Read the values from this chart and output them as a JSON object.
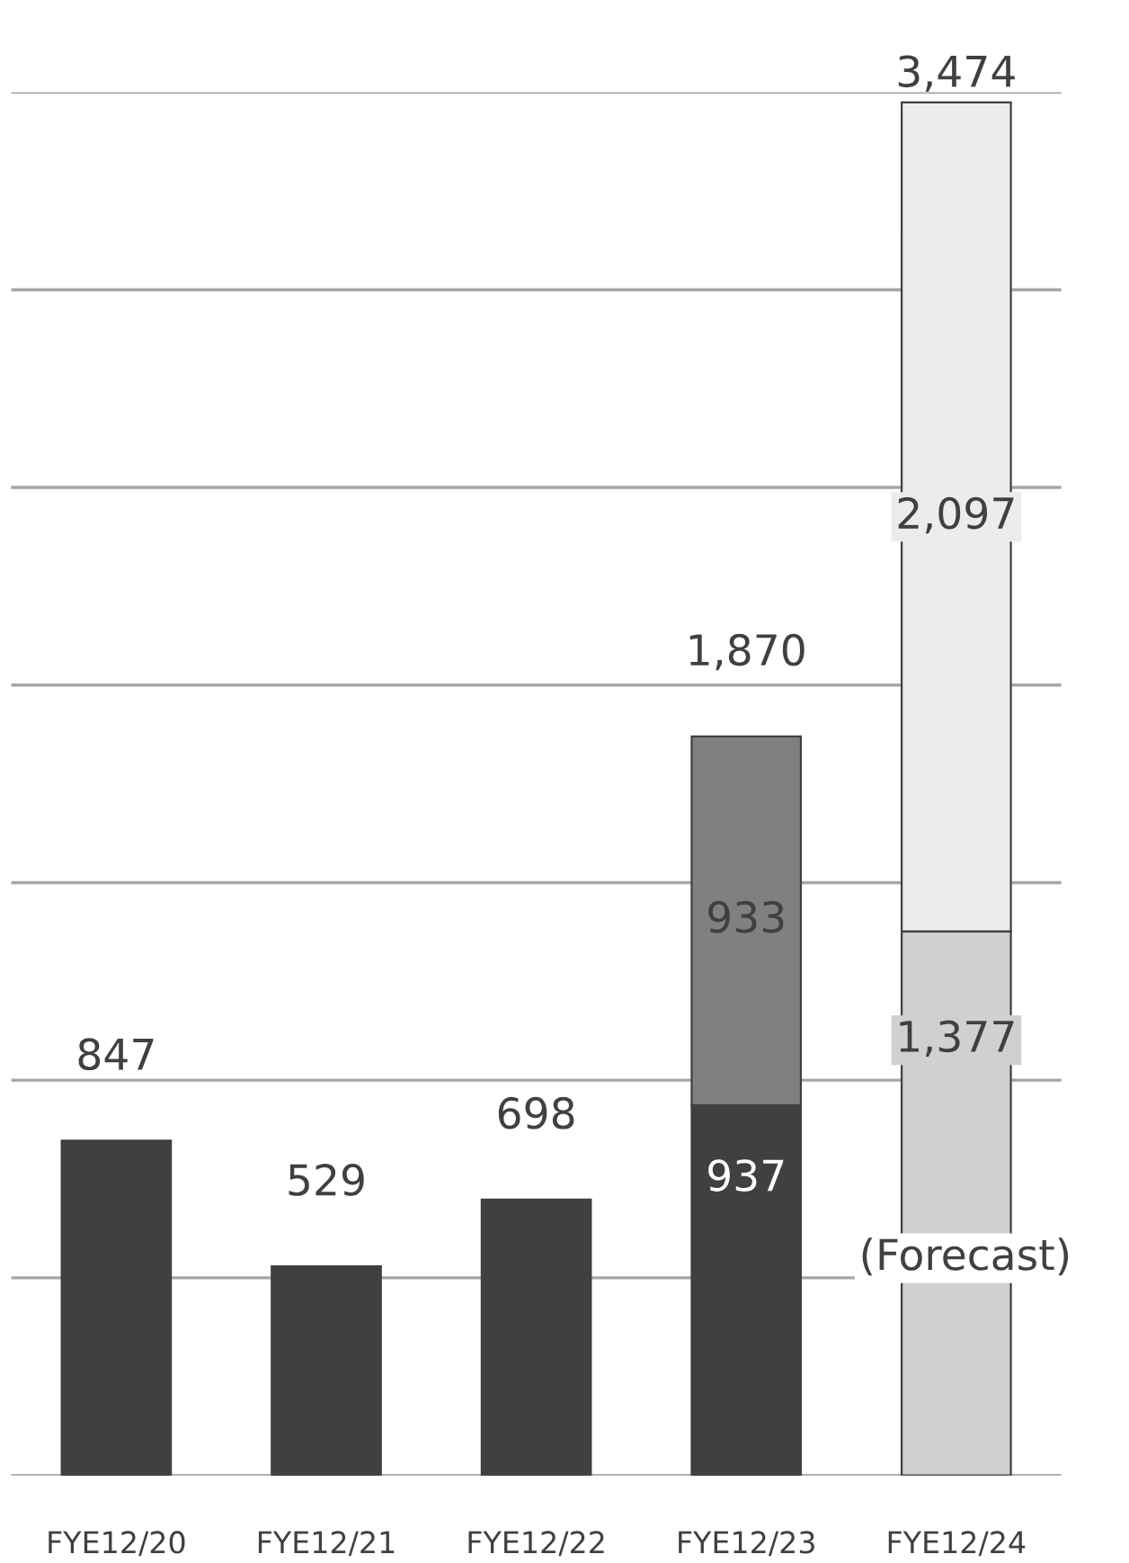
{
  "chart_data": {
    "type": "bar",
    "stacked": true,
    "categories": [
      "FYE12/20",
      "FYE12/21",
      "FYE12/22",
      "FYE12/23",
      "FYE12/24"
    ],
    "series": [
      {
        "colors": [
          "#404040",
          "#404040",
          "#404040",
          "#404040",
          "#d0d0d0"
        ],
        "values": [
          847,
          529,
          698,
          937,
          1377
        ],
        "value_labels": [
          "847",
          "529",
          "698",
          "937",
          "1,377"
        ]
      },
      {
        "colors": [
          "#808080",
          "#808080",
          "#808080",
          "#808080",
          "#ececec"
        ],
        "values": [
          null,
          null,
          null,
          933,
          2097
        ],
        "value_labels": [
          null,
          null,
          null,
          "933",
          "2,097"
        ]
      }
    ],
    "totals": [
      null,
      null,
      null,
      "1,870",
      "3,474"
    ],
    "annotations": [
      "(Forecast)"
    ],
    "ylim": [
      0,
      3500
    ],
    "yticks": [
      {
        "value": 0,
        "label": null
      },
      {
        "value": 500,
        "label": null
      },
      {
        "value": 1000,
        "label": null
      },
      {
        "value": 1500,
        "label": null
      },
      {
        "value": 2000,
        "label": null
      },
      {
        "value": 2500,
        "label": null
      },
      {
        "value": 3000,
        "label": null
      },
      {
        "value": 3500,
        "label": null
      }
    ],
    "tick_labels": "x",
    "grid": "y",
    "legend": false
  }
}
